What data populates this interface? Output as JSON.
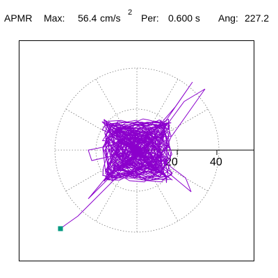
{
  "header": {
    "component": "APMR",
    "max_label": "Max:",
    "max_value": "56.4",
    "max_unit": "cm/s",
    "max_unit_exp": "2",
    "period_label": "Per:",
    "period_value": "0.600 s",
    "angle_label": "Ang:",
    "angle_value": "227.2"
  },
  "plot": {
    "tick_labels": [
      "20",
      "40"
    ],
    "trace_color": "#8b00cc",
    "end_marker_color": "#009980",
    "grid_color": "#777777"
  }
}
